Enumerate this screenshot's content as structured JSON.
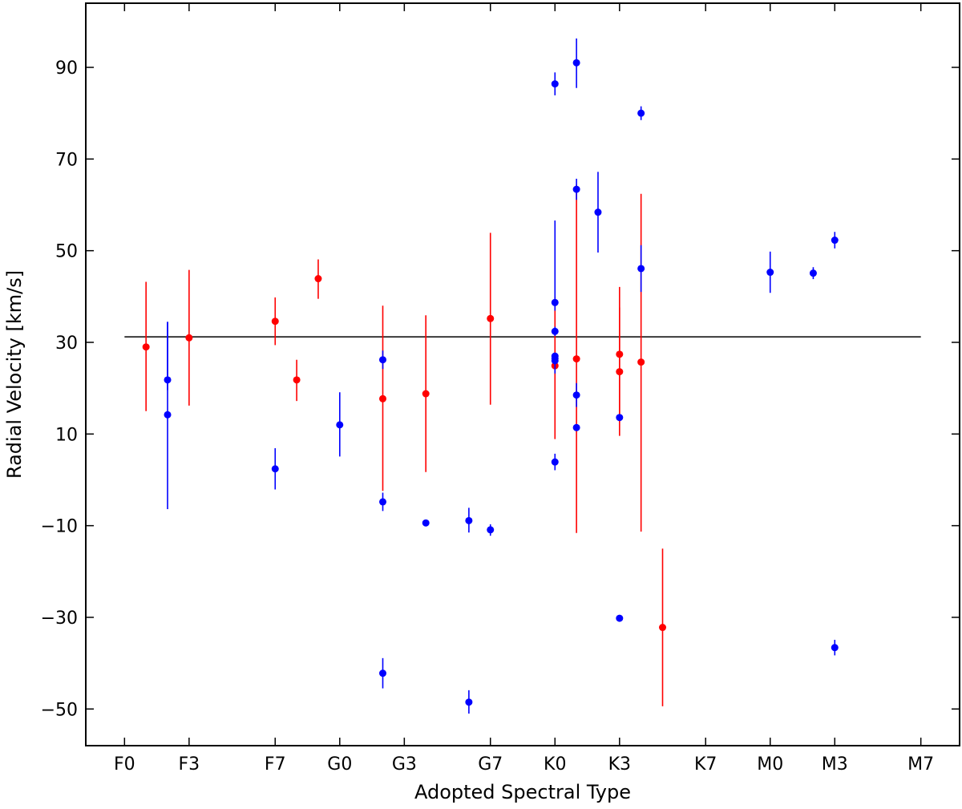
{
  "chart_data": {
    "type": "scatter",
    "title": "",
    "xlabel": "Adopted Spectral Type",
    "ylabel": "Radial Velocity [km/s]",
    "x_tick_labels": [
      "F0",
      "F3",
      "F7",
      "G0",
      "G3",
      "G7",
      "K0",
      "K3",
      "K7",
      "M0",
      "M3",
      "M7"
    ],
    "x_tick_positions": [
      0,
      3,
      7,
      10,
      13,
      17,
      20,
      23,
      27,
      30,
      33,
      37
    ],
    "y_tick_values": [
      -50,
      -30,
      -10,
      10,
      30,
      50,
      70,
      90
    ],
    "y_tick_labels": [
      "−50",
      "−30",
      "−10",
      "10",
      "30",
      "50",
      "70",
      "90"
    ],
    "xlim": [
      -1.8,
      38.8
    ],
    "ylim": [
      -58,
      104
    ],
    "reference_line_y": 31.2,
    "grid": false,
    "colors": {
      "series_red": "#ff0000",
      "series_blue": "#0000ff",
      "reference_line": "#000000"
    },
    "series": [
      {
        "color": "red",
        "points": [
          {
            "x": 1,
            "y": 29,
            "yerr_low": 14,
            "yerr_high": 14.2
          },
          {
            "x": 3,
            "y": 31,
            "yerr_low": 14.8,
            "yerr_high": 14.8
          },
          {
            "x": 7,
            "y": 34.6,
            "yerr_low": 5.2,
            "yerr_high": 5.2
          },
          {
            "x": 8,
            "y": 21.8,
            "yerr_low": 4.6,
            "yerr_high": 4.4
          },
          {
            "x": 9,
            "y": 43.9,
            "yerr_low": 4.4,
            "yerr_high": 4.2
          },
          {
            "x": 12,
            "y": 17.7,
            "yerr_low": 20.1,
            "yerr_high": 20.3
          },
          {
            "x": 14,
            "y": 18.8,
            "yerr_low": 17.1,
            "yerr_high": 17.1
          },
          {
            "x": 17,
            "y": 35.2,
            "yerr_low": 18.8,
            "yerr_high": 18.7
          },
          {
            "x": 20,
            "y": 24.9,
            "yerr_low": 16,
            "yerr_high": 15.1
          },
          {
            "x": 21,
            "y": 26.4,
            "yerr_low": 38,
            "yerr_high": 38
          },
          {
            "x": 23,
            "y": 27.4,
            "yerr_low": 14.8,
            "yerr_high": 14.7
          },
          {
            "x": 23,
            "y": 23.6,
            "yerr_low": 14,
            "yerr_high": 14
          },
          {
            "x": 24,
            "y": 25.7,
            "yerr_low": 37,
            "yerr_high": 36.7
          },
          {
            "x": 25,
            "y": -32.2,
            "yerr_low": 17.2,
            "yerr_high": 17.2
          }
        ]
      },
      {
        "color": "blue",
        "points": [
          {
            "x": 2,
            "y": 21.8,
            "yerr_low": 2.2,
            "yerr_high": 12.7
          },
          {
            "x": 2,
            "y": 14.2,
            "yerr_low": 20.6,
            "yerr_high": 20.2
          },
          {
            "x": 7,
            "y": 2.4,
            "yerr_low": 4.5,
            "yerr_high": 4.5
          },
          {
            "x": 10,
            "y": 12,
            "yerr_low": 6.9,
            "yerr_high": 7.1
          },
          {
            "x": 12,
            "y": 26.2,
            "yerr_low": 2,
            "yerr_high": 2
          },
          {
            "x": 12,
            "y": -4.8,
            "yerr_low": 2,
            "yerr_high": 2
          },
          {
            "x": 12,
            "y": -42.2,
            "yerr_low": 3.3,
            "yerr_high": 3.3
          },
          {
            "x": 14,
            "y": -9.4,
            "yerr_low": 0.5,
            "yerr_high": 0.5
          },
          {
            "x": 16,
            "y": -8.9,
            "yerr_low": 2.6,
            "yerr_high": 2.8
          },
          {
            "x": 16,
            "y": -48.5,
            "yerr_low": 2.5,
            "yerr_high": 2.6
          },
          {
            "x": 17,
            "y": -10.9,
            "yerr_low": 1.3,
            "yerr_high": 1.2
          },
          {
            "x": 20,
            "y": 86.4,
            "yerr_low": 2.5,
            "yerr_high": 2.5
          },
          {
            "x": 20,
            "y": 38.7,
            "yerr_low": 1.8,
            "yerr_high": 17.9
          },
          {
            "x": 20,
            "y": 32.4,
            "yerr_low": 1,
            "yerr_high": 1
          },
          {
            "x": 20,
            "y": 27,
            "yerr_low": 0.5,
            "yerr_high": 0.5
          },
          {
            "x": 20,
            "y": 26.5,
            "yerr_low": 0.5,
            "yerr_high": 0.5
          },
          {
            "x": 20,
            "y": 26,
            "yerr_low": 2.8,
            "yerr_high": 0.5
          },
          {
            "x": 20,
            "y": 3.9,
            "yerr_low": 1.8,
            "yerr_high": 1.8
          },
          {
            "x": 21,
            "y": 91,
            "yerr_low": 5.5,
            "yerr_high": 5.3
          },
          {
            "x": 21,
            "y": 63.4,
            "yerr_low": 2.3,
            "yerr_high": 2.3
          },
          {
            "x": 21,
            "y": 18.5,
            "yerr_low": 2.6,
            "yerr_high": 2.6
          },
          {
            "x": 21,
            "y": 11.4,
            "yerr_low": 0.5,
            "yerr_high": 0.5
          },
          {
            "x": 22,
            "y": 58.4,
            "yerr_low": 8.8,
            "yerr_high": 8.8
          },
          {
            "x": 23,
            "y": 13.6,
            "yerr_low": 0.5,
            "yerr_high": 0.5
          },
          {
            "x": 23,
            "y": -30.2,
            "yerr_low": 0.5,
            "yerr_high": 0.5
          },
          {
            "x": 24,
            "y": 80,
            "yerr_low": 1.5,
            "yerr_high": 1.5
          },
          {
            "x": 24,
            "y": 46.1,
            "yerr_low": 5.1,
            "yerr_high": 5.1
          },
          {
            "x": 30,
            "y": 45.3,
            "yerr_low": 4.5,
            "yerr_high": 4.5
          },
          {
            "x": 32,
            "y": 45.1,
            "yerr_low": 1.3,
            "yerr_high": 1.3
          },
          {
            "x": 33,
            "y": 52.3,
            "yerr_low": 1.8,
            "yerr_high": 1.8
          },
          {
            "x": 33,
            "y": -36.6,
            "yerr_low": 1.7,
            "yerr_high": 1.7
          }
        ]
      }
    ]
  }
}
